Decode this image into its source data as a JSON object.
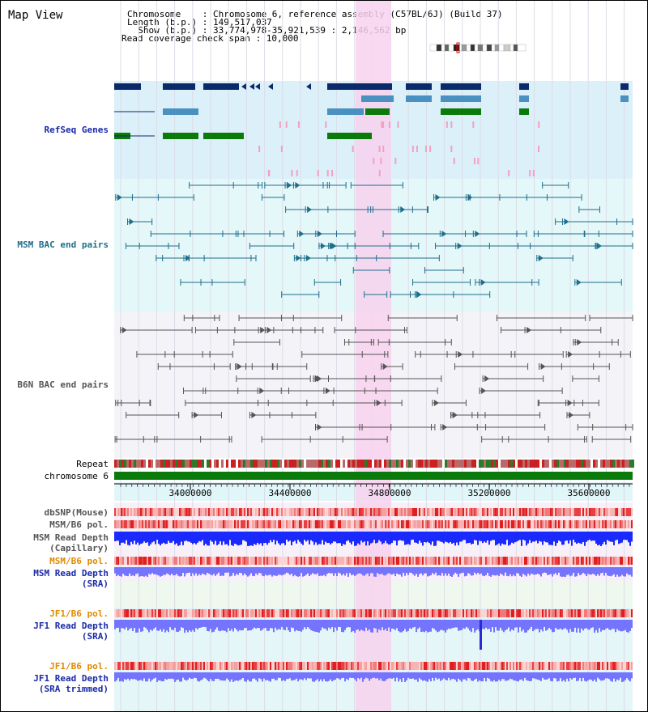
{
  "header": {
    "title": "Map View",
    "info_lines": [
      "Chromosome    : Chromosome 6, reference assembly (C57BL/6J) (Build 37)",
      "Length (b.p.) : 149,517,037",
      "  Show (b.p.) : 33,774,978-35,921,539 : 2,146,562 bp",
      "Read coverage check span : 10,000"
    ]
  },
  "tracks": {
    "refseq": "RefSeq Genes",
    "msm_bac": "MSM BAC end pairs",
    "b6n_bac": "B6N BAC end pairs",
    "repeat": "Repeat",
    "chromosome": "chromosome 6",
    "dbsnp": "dbSNP(Mouse)",
    "msm_b6_pol_1": "MSM/B6 pol.",
    "msm_read_depth_cap_1": "MSM Read Depth",
    "msm_read_depth_cap_2": "(Capillary)",
    "msm_b6_pol_2": "MSM/B6 pol.",
    "msm_read_depth_sra_1": "MSM Read Depth",
    "msm_read_depth_sra_2": "(SRA)",
    "jf1_b6_pol_1": "JF1/B6 pol.",
    "jf1_read_depth_sra_1": "JF1 Read Depth",
    "jf1_read_depth_sra_2": "(SRA)",
    "jf1_b6_pol_2": "JF1/B6 pol.",
    "jf1_read_depth_trim_1": "JF1 Read Depth",
    "jf1_read_depth_trim_2": "(SRA trimmed)"
  },
  "axis": {
    "ticks": [
      "34000000",
      "34400000",
      "34800000",
      "35200000",
      "35600000"
    ]
  },
  "colors": {
    "refseq_bg": "#dcf0fa",
    "msm_bg": "#e4f7f9",
    "highlight": "#f7d2ef",
    "gene_dark": "#0a2a6a",
    "gene_mid": "#4a90c0",
    "gene_green": "#0a7a0a",
    "msm_line": "#1e6e8c",
    "b6n_line": "#555555",
    "depth_blue": "#1a2aff",
    "depth_violet": "#7474ff",
    "chrom_green": "#0a7a0a"
  }
}
